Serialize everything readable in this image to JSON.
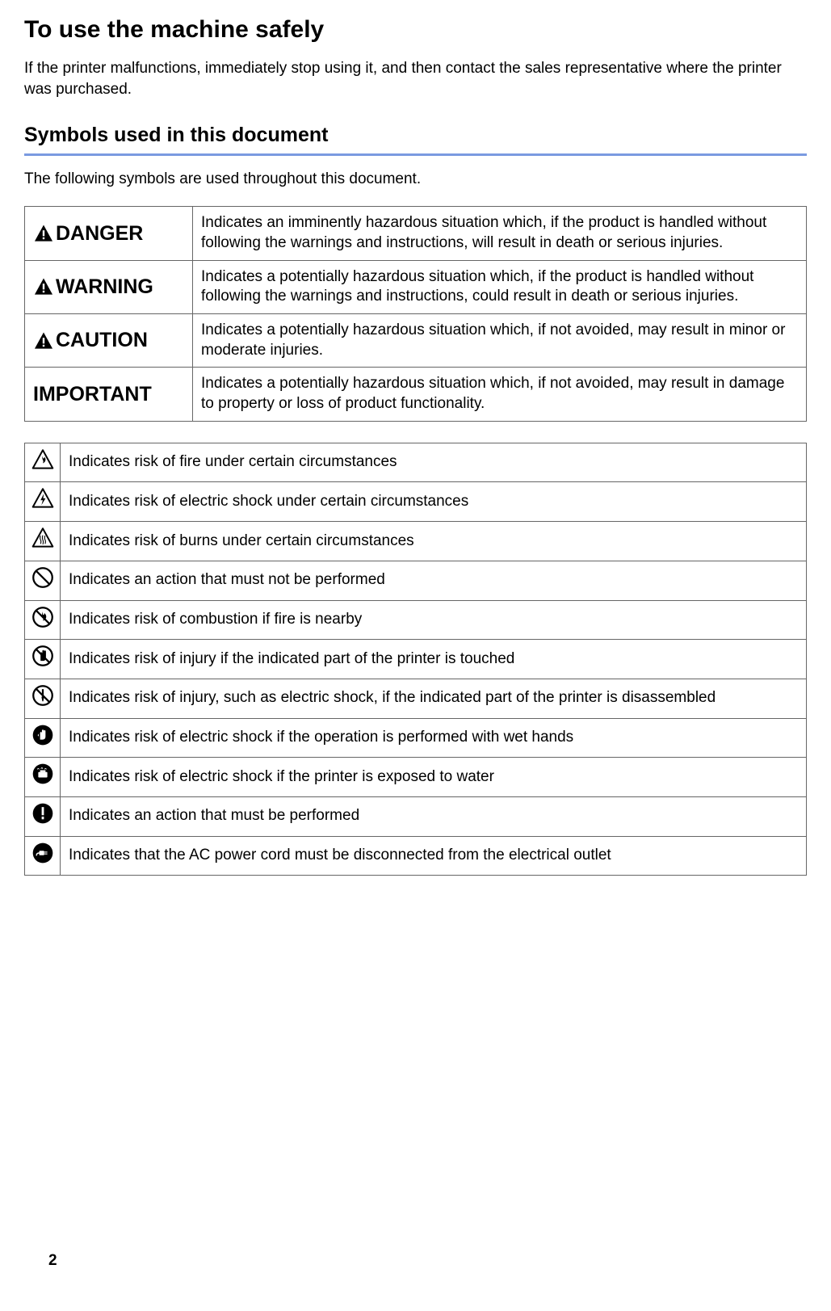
{
  "heading": "To use the machine safely",
  "intro": "If the printer malfunctions, immediately stop using it, and then contact the sales representative where the printer was purchased.",
  "subheading": "Symbols used in this document",
  "underline_color": "#7a9ae0",
  "lead": "The following symbols are used throughout this document.",
  "signal_words": [
    {
      "label": "DANGER",
      "show_triangle": true,
      "desc": "Indicates an imminently hazardous situation which, if the product is handled without following the warnings and instructions, will result in death or serious injuries."
    },
    {
      "label": "WARNING",
      "show_triangle": true,
      "desc": "Indicates a potentially hazardous situation which, if the product is handled without following the warnings and instructions, could result in death or serious injuries."
    },
    {
      "label": "CAUTION",
      "show_triangle": true,
      "desc": "Indicates a potentially hazardous situation which, if not avoided, may result in minor or moderate injuries."
    },
    {
      "label": "IMPORTANT",
      "show_triangle": false,
      "desc": "Indicates a potentially hazardous situation which, if not avoided, may result in damage to property or loss of product functionality."
    }
  ],
  "hazard_icons": [
    {
      "icon": "fire-triangle",
      "desc": "Indicates risk of fire under certain circumstances"
    },
    {
      "icon": "shock-triangle",
      "desc": "Indicates risk of electric shock under certain circumstances"
    },
    {
      "icon": "burn-triangle",
      "desc": "Indicates risk of burns under certain circumstances"
    },
    {
      "icon": "prohibit",
      "desc": "Indicates an action that must not be performed"
    },
    {
      "icon": "no-fire",
      "desc": "Indicates risk of combustion if fire is nearby"
    },
    {
      "icon": "no-touch",
      "desc": "Indicates risk of injury if the indicated part of the printer is touched"
    },
    {
      "icon": "no-disassemble",
      "desc": "Indicates risk of injury, such as electric shock, if the indicated part of the printer is disassembled"
    },
    {
      "icon": "no-wet-hands",
      "desc": "Indicates risk of electric shock if the operation is performed with wet hands"
    },
    {
      "icon": "no-water",
      "desc": "Indicates risk of electric shock if the printer is exposed to water"
    },
    {
      "icon": "mandatory",
      "desc": "Indicates an action that must be performed"
    },
    {
      "icon": "unplug",
      "desc": "Indicates that the AC power cord must be disconnected from the electrical outlet"
    }
  ],
  "page_number": "2",
  "colors": {
    "text": "#000000",
    "border": "#666666",
    "background": "#ffffff"
  }
}
